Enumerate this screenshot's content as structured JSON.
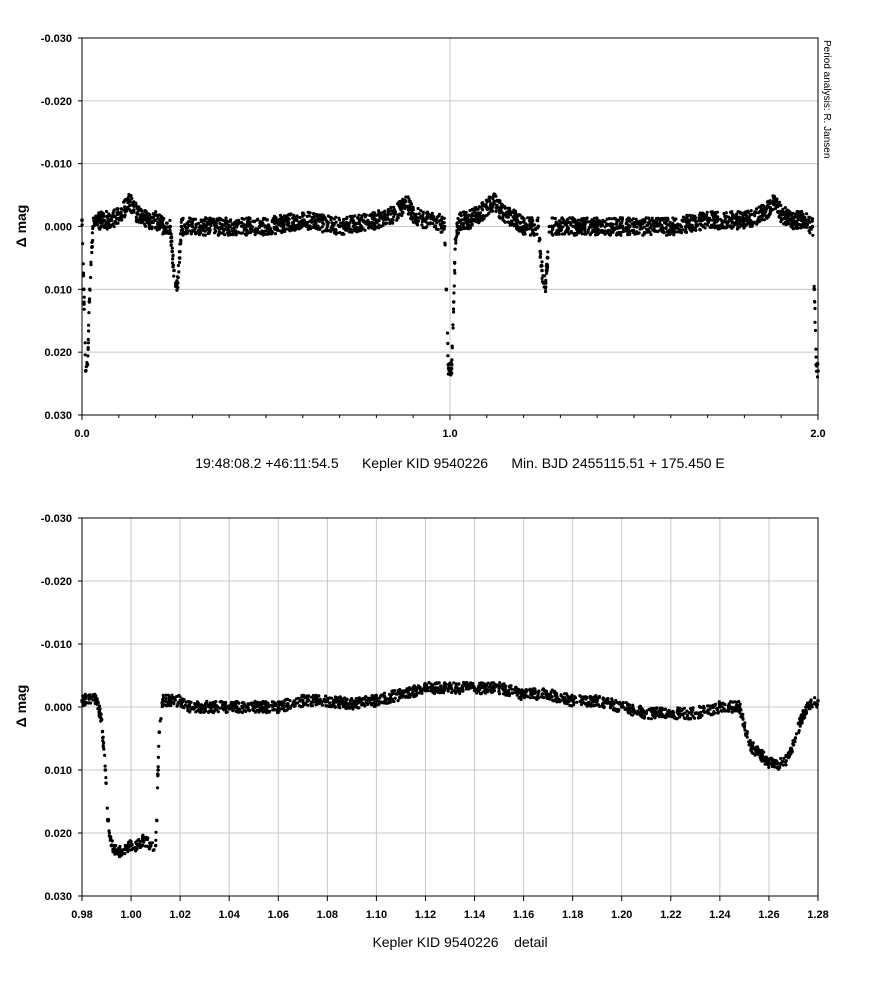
{
  "chart_data": [
    {
      "type": "scatter",
      "title": "",
      "xlabel": "19:48:08.2 +46:11:54.5      Kepler KID 9540226      Min. BJD 2455115.51 + 175.450 E",
      "ylabel": "Δ mag",
      "side_note": "Period analysis: R. Jansen",
      "xlim": [
        0.0,
        2.0
      ],
      "ylim": [
        -0.03,
        0.03
      ],
      "y_inverted": true,
      "grid": true,
      "x_ticks": [
        "0.0",
        "1.0",
        "2.0"
      ],
      "x_tick_values": [
        0.0,
        1.0,
        2.0
      ],
      "x_minor_step": 0.1,
      "y_ticks": [
        "-0.030",
        "-0.020",
        "-0.010",
        "0.000",
        "0.010",
        "0.020",
        "0.030"
      ],
      "y_tick_values": [
        -0.03,
        -0.02,
        -0.01,
        0.0,
        0.01,
        0.02,
        0.03
      ],
      "series": [
        {
          "marker_color": "#000000",
          "description_points": "phased light curve, two cycles",
          "x": [
            0.0,
            0.005,
            0.01,
            0.015,
            0.02,
            0.03,
            0.05,
            0.08,
            0.1,
            0.12,
            0.13,
            0.15,
            0.18,
            0.2,
            0.22,
            0.24,
            0.245,
            0.25,
            0.255,
            0.26,
            0.265,
            0.27,
            0.28,
            0.3,
            0.4,
            0.5,
            0.6,
            0.7,
            0.8,
            0.85,
            0.87,
            0.88,
            0.9,
            0.93,
            0.96,
            0.985,
            0.99,
            0.995,
            1.0,
            1.005,
            1.01,
            1.015,
            1.02,
            1.03,
            1.05,
            1.08,
            1.1,
            1.12,
            1.13,
            1.15,
            1.18,
            1.2,
            1.22,
            1.24,
            1.245,
            1.25,
            1.255,
            1.26,
            1.265,
            1.27,
            1.28,
            1.3,
            1.4,
            1.5,
            1.6,
            1.7,
            1.8,
            1.85,
            1.87,
            1.88,
            1.9,
            1.93,
            1.96,
            1.985,
            1.99,
            1.995,
            2.0
          ],
          "y": [
            -0.001,
            0.01,
            0.023,
            0.022,
            0.012,
            0.0,
            -0.001,
            -0.001,
            -0.002,
            -0.003,
            -0.004,
            -0.002,
            -0.001,
            -0.001,
            0.0,
            0.0,
            0.004,
            0.007,
            0.009,
            0.009,
            0.005,
            0.0,
            0.0,
            0.0,
            0.0,
            0.0,
            -0.001,
            0.0,
            -0.001,
            -0.002,
            -0.003,
            -0.004,
            -0.002,
            -0.001,
            -0.001,
            0.0,
            0.01,
            0.022,
            0.023,
            0.022,
            0.012,
            0.002,
            0.0,
            -0.001,
            -0.001,
            -0.002,
            -0.003,
            -0.004,
            -0.003,
            -0.002,
            -0.001,
            0.0,
            0.0,
            0.0,
            0.004,
            0.007,
            0.009,
            0.009,
            0.005,
            0.0,
            0.0,
            0.0,
            0.0,
            0.0,
            0.0,
            -0.001,
            -0.001,
            -0.002,
            -0.003,
            -0.004,
            -0.002,
            -0.001,
            -0.001,
            0.0,
            0.01,
            0.022,
            0.023
          ]
        }
      ]
    },
    {
      "type": "scatter",
      "title": "",
      "xlabel": "Kepler KID 9540226    detail",
      "ylabel": "Δ mag",
      "xlim": [
        0.98,
        1.28
      ],
      "ylim": [
        -0.03,
        0.03
      ],
      "y_inverted": true,
      "grid": true,
      "x_ticks": [
        "0.98",
        "1.00",
        "1.02",
        "1.04",
        "1.06",
        "1.08",
        "1.10",
        "1.12",
        "1.14",
        "1.16",
        "1.18",
        "1.20",
        "1.22",
        "1.24",
        "1.26",
        "1.28"
      ],
      "x_tick_values": [
        0.98,
        1.0,
        1.02,
        1.04,
        1.06,
        1.08,
        1.1,
        1.12,
        1.14,
        1.16,
        1.18,
        1.2,
        1.22,
        1.24,
        1.26,
        1.28
      ],
      "y_ticks": [
        "-0.030",
        "-0.020",
        "-0.010",
        "0.000",
        "0.010",
        "0.020",
        "0.030"
      ],
      "y_tick_values": [
        -0.03,
        -0.02,
        -0.01,
        0.0,
        0.01,
        0.02,
        0.03
      ],
      "series": [
        {
          "marker_color": "#000000",
          "x": [
            0.98,
            0.983,
            0.986,
            0.988,
            0.9895,
            0.9905,
            0.992,
            0.995,
            1.0,
            1.003,
            1.005,
            1.008,
            1.01,
            1.0105,
            1.011,
            1.0115,
            1.013,
            1.016,
            1.02,
            1.024,
            1.028,
            1.032,
            1.04,
            1.05,
            1.06,
            1.07,
            1.08,
            1.09,
            1.1,
            1.11,
            1.12,
            1.13,
            1.14,
            1.15,
            1.16,
            1.17,
            1.18,
            1.19,
            1.2,
            1.21,
            1.22,
            1.23,
            1.24,
            1.248,
            1.25,
            1.252,
            1.255,
            1.258,
            1.26,
            1.262,
            1.265,
            1.268,
            1.27,
            1.273,
            1.276,
            1.28
          ],
          "y": [
            -0.001,
            -0.0015,
            -0.001,
            0.002,
            0.01,
            0.018,
            0.022,
            0.023,
            0.022,
            0.022,
            0.021,
            0.022,
            0.022,
            0.018,
            0.01,
            0.004,
            -0.001,
            -0.001,
            -0.001,
            0.0,
            0.0,
            0.0,
            0.0,
            0.0,
            0.0,
            -0.001,
            -0.001,
            -0.0005,
            -0.001,
            -0.002,
            -0.003,
            -0.003,
            -0.003,
            -0.003,
            -0.002,
            -0.002,
            -0.001,
            -0.001,
            0.0,
            0.001,
            0.001,
            0.001,
            0.0,
            0.0,
            0.003,
            0.006,
            0.007,
            0.008,
            0.009,
            0.009,
            0.009,
            0.008,
            0.006,
            0.002,
            0.0,
            -0.001
          ]
        }
      ]
    }
  ]
}
